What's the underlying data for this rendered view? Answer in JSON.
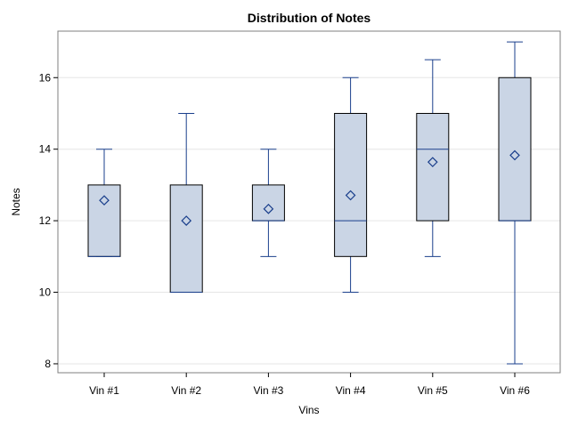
{
  "chart_data": {
    "type": "boxplot",
    "title": "Distribution of Notes",
    "xlabel": "Vins",
    "ylabel": "Notes",
    "ylim": [
      7.75,
      17.3
    ],
    "yticks": [
      8,
      10,
      12,
      14,
      16
    ],
    "grid": "horizontal",
    "categories": [
      "Vin #1",
      "Vin #2",
      "Vin #3",
      "Vin #4",
      "Vin #5",
      "Vin #6"
    ],
    "boxes": [
      {
        "category": "Vin #1",
        "min": 11,
        "q1": 11,
        "median": 11,
        "q3": 13,
        "max": 14,
        "mean": 12.57
      },
      {
        "category": "Vin #2",
        "min": 10,
        "q1": 10,
        "median": 10,
        "q3": 13,
        "max": 15,
        "mean": 12.0
      },
      {
        "category": "Vin #3",
        "min": 11,
        "q1": 12,
        "median": 12,
        "q3": 13,
        "max": 14,
        "mean": 12.33
      },
      {
        "category": "Vin #4",
        "min": 10,
        "q1": 11,
        "median": 12,
        "q3": 15,
        "max": 16,
        "mean": 12.71
      },
      {
        "category": "Vin #5",
        "min": 11,
        "q1": 12,
        "median": 14,
        "q3": 15,
        "max": 16.5,
        "mean": 13.64
      },
      {
        "category": "Vin #6",
        "min": 8,
        "q1": 12,
        "median": 12,
        "q3": 16,
        "max": 17,
        "mean": 13.83
      }
    ],
    "colors": {
      "box_fill": "#cad5e5",
      "box_stroke": "#000000",
      "whisker": "#1a3f8c",
      "median": "#1a3f8c",
      "mean_marker": "#1a3f8c",
      "grid": "#e6e6e6",
      "frame": "#7f7f7f"
    }
  }
}
